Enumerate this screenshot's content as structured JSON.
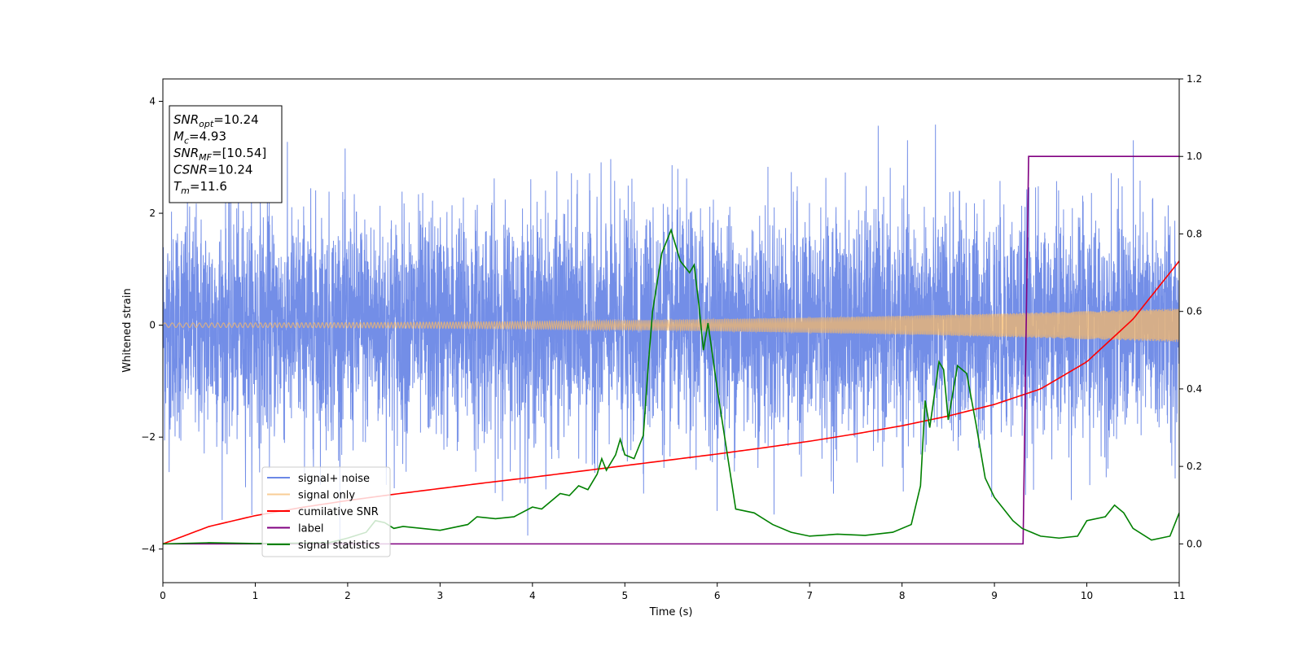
{
  "chart_data": {
    "type": "line",
    "title": "",
    "xlabel": "Time (s)",
    "ylabel_left": "Whitened strain",
    "ylabel_right": "",
    "xlim": [
      0,
      11
    ],
    "ylim_left": [
      -4.6,
      4.4
    ],
    "ylim_right": [
      -0.1,
      1.2
    ],
    "xticks": [
      0,
      1,
      2,
      3,
      4,
      5,
      6,
      7,
      8,
      9,
      10,
      11
    ],
    "yticks_left": [
      -4,
      -2,
      0,
      2,
      4
    ],
    "yticks_right": [
      0.0,
      0.2,
      0.4,
      0.6,
      0.8,
      1.0,
      1.2
    ],
    "grid": false,
    "legend_position": "lower-left",
    "annotation": {
      "lines": [
        {
          "base": "SNR",
          "sub": "opt",
          "value": "=10.24"
        },
        {
          "base": "M",
          "sub": "c",
          "value": "=4.93"
        },
        {
          "base": "SNR",
          "sub": "MF",
          "value": "=[10.54]"
        },
        {
          "base": "CSNR",
          "sub": "",
          "value": "=10.24"
        },
        {
          "base": "T",
          "sub": "m",
          "value": "=11.6"
        }
      ]
    },
    "series": [
      {
        "name": "signal+ noise",
        "axis": "left",
        "color": "#6b88e6",
        "kind": "noise",
        "std": 1.0,
        "range": [
          -4.15,
          4.05
        ]
      },
      {
        "name": "signal only",
        "axis": "left",
        "color": "#f5b86a",
        "kind": "chirp",
        "amplitude_start": 0.04,
        "amplitude_end": 0.3
      },
      {
        "name": "cumilative SNR",
        "axis": "right",
        "color": "#ff0000",
        "x": [
          0,
          0.5,
          1,
          1.5,
          2,
          2.5,
          3,
          3.5,
          4,
          4.5,
          5,
          5.5,
          6,
          6.5,
          7,
          7.5,
          8,
          8.5,
          9,
          9.5,
          10,
          10.5,
          11
        ],
        "y": [
          0.0,
          0.045,
          0.073,
          0.094,
          0.112,
          0.128,
          0.143,
          0.158,
          0.172,
          0.187,
          0.202,
          0.217,
          0.232,
          0.248,
          0.265,
          0.284,
          0.305,
          0.33,
          0.36,
          0.4,
          0.47,
          0.58,
          0.73
        ]
      },
      {
        "name": "label",
        "axis": "right",
        "color": "#800080",
        "x": [
          0,
          9.31,
          9.37,
          11
        ],
        "y": [
          0.0,
          0.0,
          1.0,
          1.0
        ]
      },
      {
        "name": "signal statistics",
        "axis": "right",
        "color": "#008000",
        "x": [
          0,
          0.5,
          1,
          1.5,
          1.8,
          2,
          2.2,
          2.3,
          2.4,
          2.5,
          2.6,
          2.8,
          3.0,
          3.3,
          3.4,
          3.6,
          3.8,
          4.0,
          4.1,
          4.2,
          4.3,
          4.4,
          4.5,
          4.6,
          4.7,
          4.75,
          4.8,
          4.9,
          4.95,
          5.0,
          5.1,
          5.2,
          5.25,
          5.3,
          5.4,
          5.5,
          5.6,
          5.7,
          5.75,
          5.8,
          5.85,
          5.9,
          6.0,
          6.2,
          6.4,
          6.6,
          6.8,
          7.0,
          7.3,
          7.6,
          7.9,
          8.1,
          8.2,
          8.25,
          8.3,
          8.4,
          8.45,
          8.5,
          8.6,
          8.7,
          8.8,
          8.9,
          9.0,
          9.2,
          9.3,
          9.35,
          9.5,
          9.7,
          9.9,
          10.0,
          10.2,
          10.3,
          10.4,
          10.5,
          10.7,
          10.9,
          11.0
        ],
        "y": [
          0.0,
          0.003,
          0.001,
          0.002,
          0.003,
          0.015,
          0.03,
          0.06,
          0.055,
          0.04,
          0.045,
          0.04,
          0.035,
          0.05,
          0.07,
          0.065,
          0.07,
          0.095,
          0.09,
          0.11,
          0.13,
          0.125,
          0.15,
          0.14,
          0.18,
          0.22,
          0.19,
          0.23,
          0.27,
          0.23,
          0.22,
          0.28,
          0.45,
          0.6,
          0.75,
          0.81,
          0.73,
          0.7,
          0.72,
          0.62,
          0.5,
          0.57,
          0.4,
          0.09,
          0.08,
          0.05,
          0.03,
          0.02,
          0.025,
          0.022,
          0.03,
          0.05,
          0.15,
          0.37,
          0.3,
          0.47,
          0.45,
          0.32,
          0.46,
          0.44,
          0.31,
          0.17,
          0.12,
          0.06,
          0.04,
          0.035,
          0.02,
          0.015,
          0.02,
          0.06,
          0.07,
          0.1,
          0.08,
          0.04,
          0.01,
          0.02,
          0.08
        ]
      }
    ]
  }
}
